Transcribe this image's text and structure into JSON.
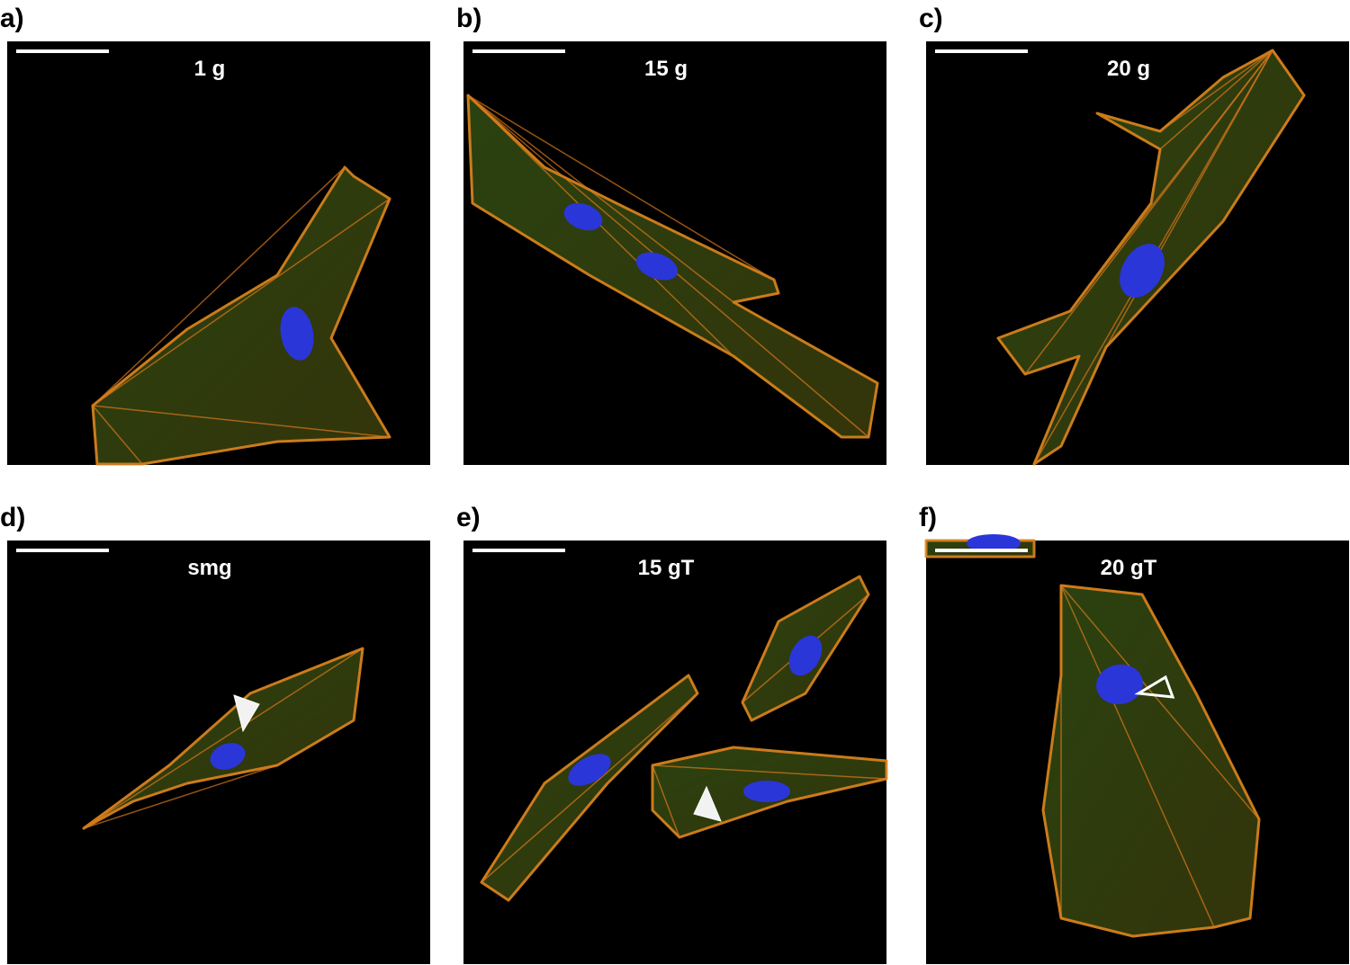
{
  "panels": [
    {
      "label": "a)",
      "title": "1 g"
    },
    {
      "label": "b)",
      "title": "15 g"
    },
    {
      "label": "c)",
      "title": "20 g"
    },
    {
      "label": "d)",
      "title": "smg"
    },
    {
      "label": "e)",
      "title": "15 gT"
    },
    {
      "label": "f)",
      "title": "20 gT"
    }
  ]
}
